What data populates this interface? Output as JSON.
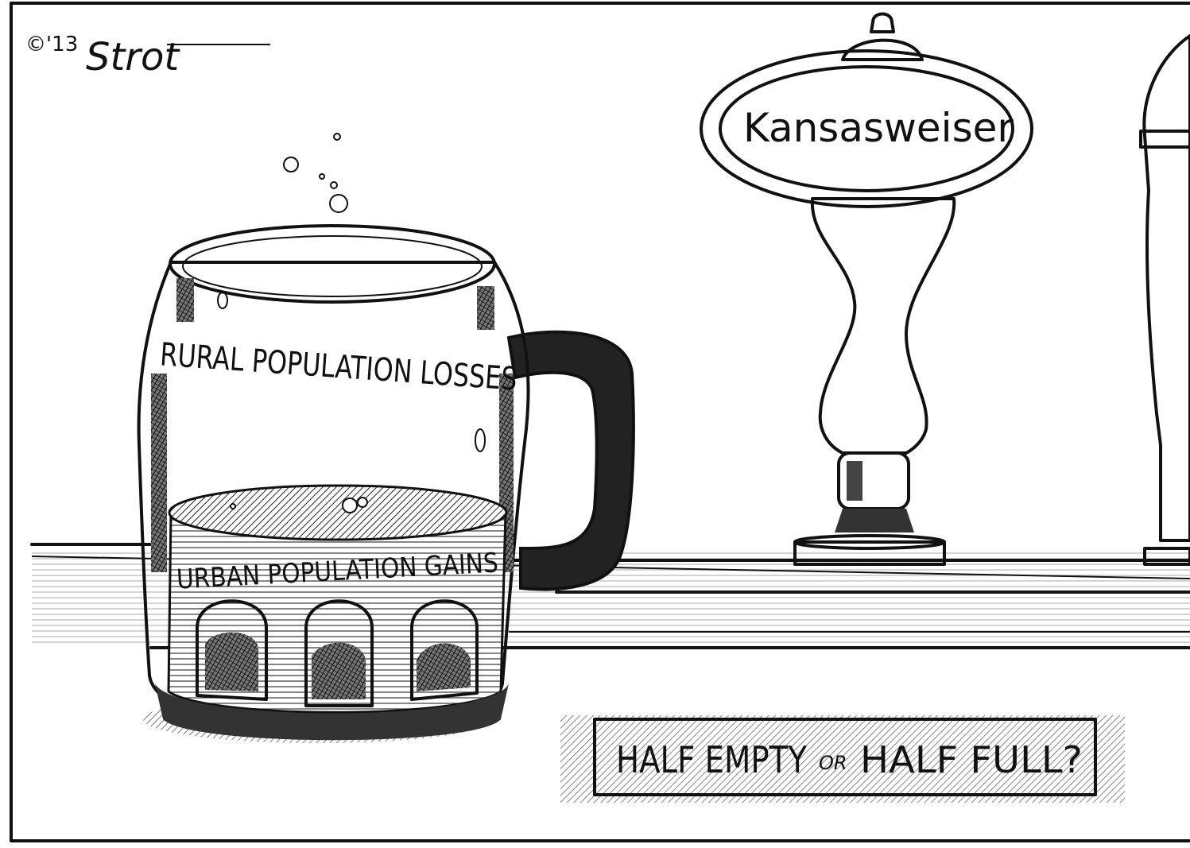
{
  "signature": {
    "copyright": "©'13",
    "artist": "Strot"
  },
  "tap_handle": {
    "label": "Kansasweiser"
  },
  "mug": {
    "upper_label": "RURAL POPULATION LOSSES",
    "lower_label": "URBAN POPULATION GAINS"
  },
  "caption": {
    "part1": "HALF EMPTY",
    "joiner": "OR",
    "part2": "HALF FULL?"
  }
}
